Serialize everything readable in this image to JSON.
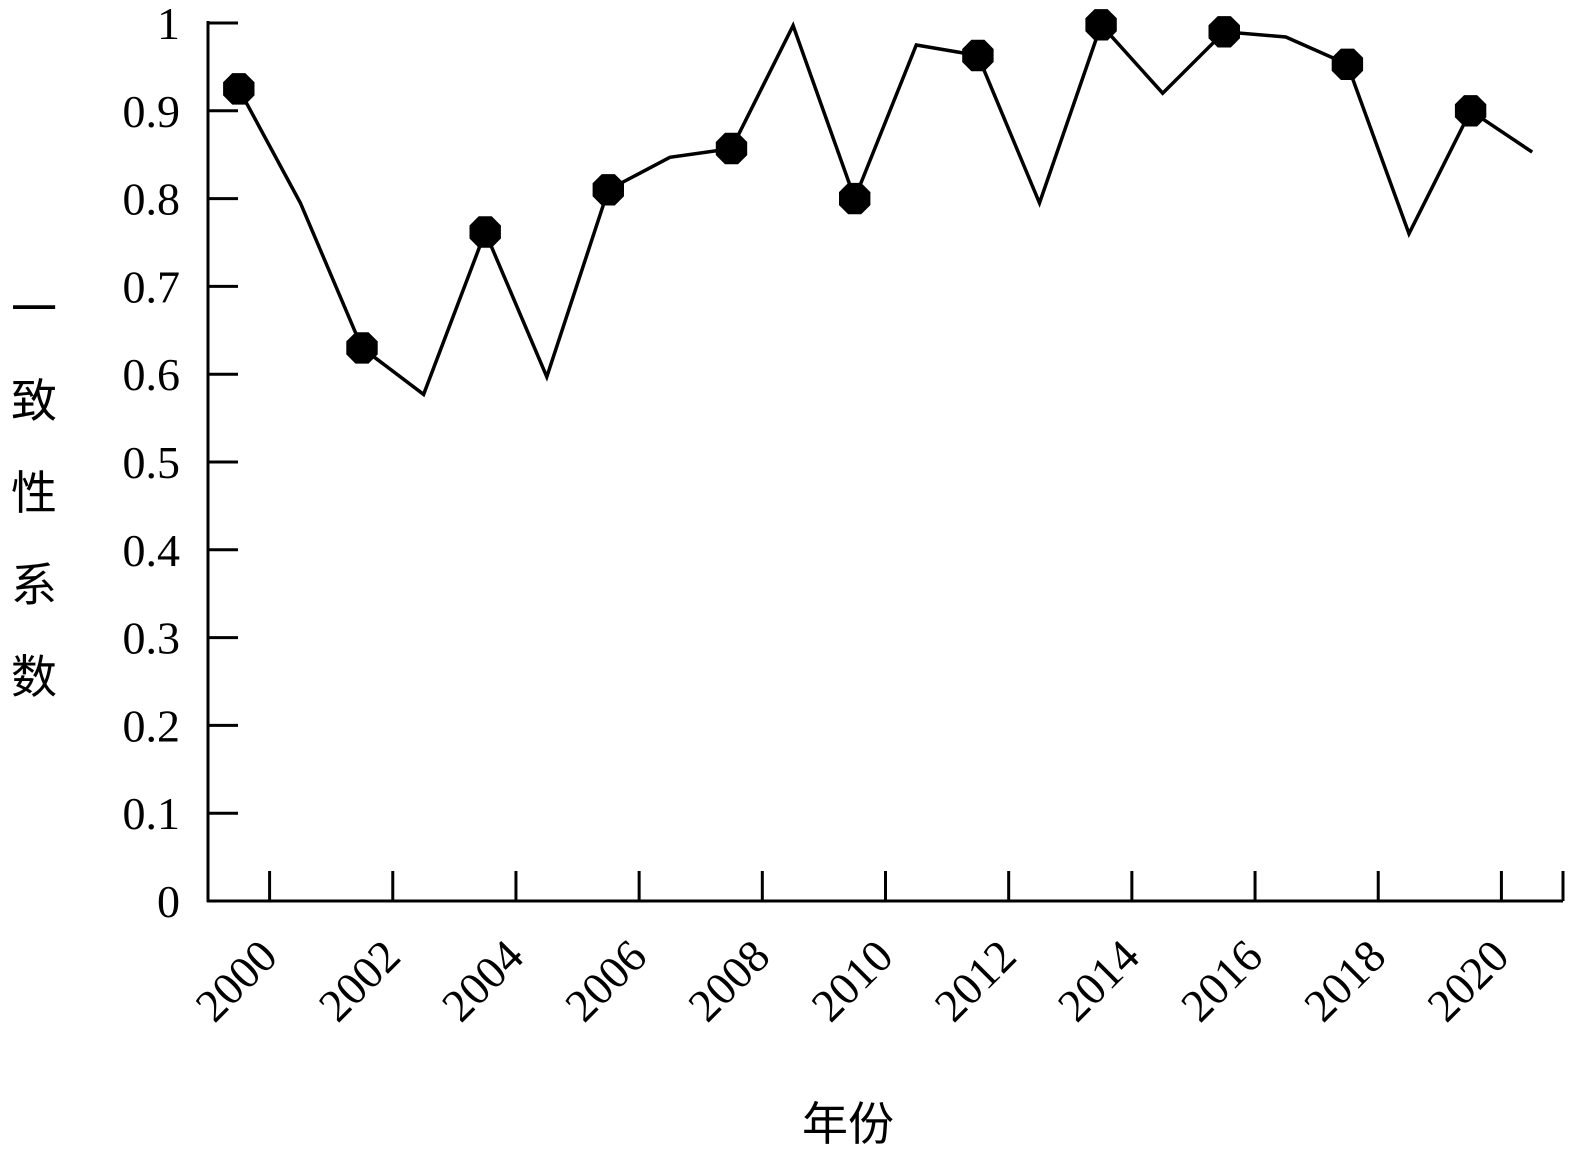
{
  "chart_data": {
    "type": "line",
    "xlabel": "年份",
    "ylabel": "一致性系数",
    "x": [
      2000,
      2001,
      2002,
      2003,
      2004,
      2005,
      2006,
      2007,
      2008,
      2009,
      2010,
      2011,
      2012,
      2013,
      2014,
      2015,
      2016,
      2017,
      2018,
      2019,
      2020
    ],
    "x_tick_labels": [
      "2000",
      "2002",
      "2004",
      "2006",
      "2008",
      "2010",
      "2012",
      "2014",
      "2016",
      "2018",
      "2020"
    ],
    "y_tick_labels": [
      "0",
      "0.1",
      "0.2",
      "0.3",
      "0.4",
      "0.5",
      "0.6",
      "0.7",
      "0.8",
      "0.9",
      "1"
    ],
    "ylim": [
      0,
      1
    ],
    "series": [
      {
        "line_points": [
          {
            "x": 1999.5,
            "y": 0.925
          },
          {
            "x": 2000.5,
            "y": 0.795
          },
          {
            "x": 2001.5,
            "y": 0.63
          },
          {
            "x": 2002.5,
            "y": 0.577
          },
          {
            "x": 2003.5,
            "y": 0.762
          },
          {
            "x": 2004.5,
            "y": 0.597
          },
          {
            "x": 2005.5,
            "y": 0.81
          },
          {
            "x": 2006.5,
            "y": 0.847
          },
          {
            "x": 2007.5,
            "y": 0.857
          },
          {
            "x": 2008.5,
            "y": 0.997
          },
          {
            "x": 2009.5,
            "y": 0.8
          },
          {
            "x": 2010.5,
            "y": 0.975
          },
          {
            "x": 2011.5,
            "y": 0.963
          },
          {
            "x": 2012.5,
            "y": 0.795
          },
          {
            "x": 2013.5,
            "y": 0.998
          },
          {
            "x": 2014.5,
            "y": 0.92
          },
          {
            "x": 2015.5,
            "y": 0.99
          },
          {
            "x": 2016.5,
            "y": 0.984
          },
          {
            "x": 2017.5,
            "y": 0.953
          },
          {
            "x": 2018.5,
            "y": 0.76
          },
          {
            "x": 2019.5,
            "y": 0.9
          },
          {
            "x": 2020.5,
            "y": 0.853
          }
        ],
        "markers": [
          {
            "x": 1999.5,
            "y": 0.925
          },
          {
            "x": 2001.5,
            "y": 0.63
          },
          {
            "x": 2003.5,
            "y": 0.762
          },
          {
            "x": 2005.5,
            "y": 0.81
          },
          {
            "x": 2007.5,
            "y": 0.857
          },
          {
            "x": 2009.5,
            "y": 0.8
          },
          {
            "x": 2011.5,
            "y": 0.963
          },
          {
            "x": 2013.5,
            "y": 0.998
          },
          {
            "x": 2015.5,
            "y": 0.99
          },
          {
            "x": 2017.5,
            "y": 0.953
          },
          {
            "x": 2019.5,
            "y": 0.9
          }
        ],
        "color": "#000000",
        "marker": "octagon"
      }
    ],
    "grid": false,
    "legend": "none"
  }
}
